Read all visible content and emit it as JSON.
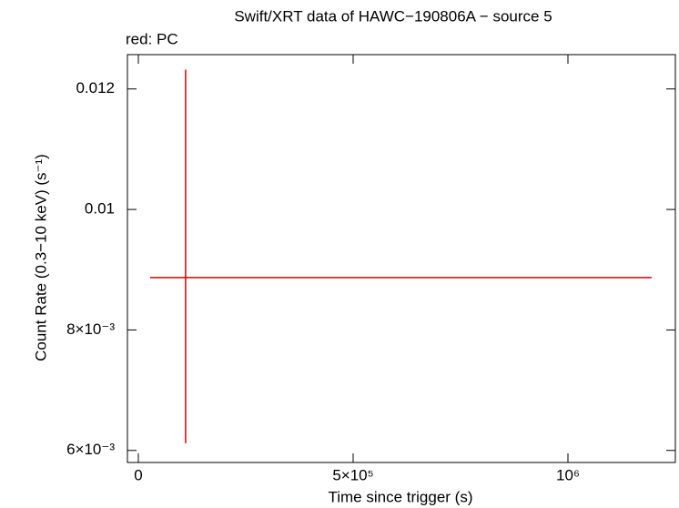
{
  "chart_data": {
    "type": "errorbar",
    "title": "Swift/XRT data of HAWC−190806A − source 5",
    "subtitle": "red: PC",
    "x_label": "Time since trigger (s)",
    "y_label": "Count Rate (0.3−10 keV) (s⁻¹)",
    "xlim": [
      -25400,
      1250000
    ],
    "ylim": [
      0.0058,
      0.01257
    ],
    "xticks": [
      0,
      {
        "value": 500000,
        "label": "5×10⁵"
      },
      {
        "value": 1000000,
        "label": "10⁶"
      }
    ],
    "yticks": [
      {
        "value": 0.006,
        "label": "6×10⁻³"
      },
      {
        "value": 0.008,
        "label": "8×10⁻³"
      },
      0.01,
      0.012
    ],
    "series": [
      {
        "color": "#e00000",
        "x": [
          110000
        ],
        "x_low": [
          27500
        ],
        "x_high": [
          1195000
        ],
        "values": [
          0.00887
        ],
        "y_low": [
          0.00612
        ],
        "y_high": [
          0.01232
        ]
      }
    ]
  }
}
